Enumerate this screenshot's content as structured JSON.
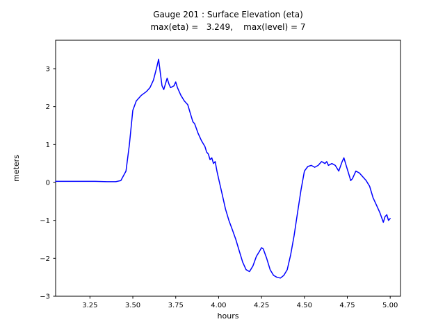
{
  "chart_data": {
    "type": "line",
    "title": "Gauge 201 : Surface Elevation (eta)",
    "subtitle": "max(eta) =   3.249,    max(level) = 7",
    "xlabel": "hours",
    "ylabel": "meters",
    "xlim": [
      3.05,
      5.06
    ],
    "ylim": [
      -3,
      3.75
    ],
    "grid": false,
    "line_color": "#0000ff",
    "axis_color": "#000000",
    "xticks": [
      {
        "v": 3.25,
        "label": "3.25"
      },
      {
        "v": 3.5,
        "label": "3.50"
      },
      {
        "v": 3.75,
        "label": "3.75"
      },
      {
        "v": 4.0,
        "label": "4.00"
      },
      {
        "v": 4.25,
        "label": "4.25"
      },
      {
        "v": 4.5,
        "label": "4.50"
      },
      {
        "v": 4.75,
        "label": "4.75"
      },
      {
        "v": 5.0,
        "label": "5.00"
      }
    ],
    "yticks": [
      {
        "v": -3,
        "label": "−3"
      },
      {
        "v": -2,
        "label": "−2"
      },
      {
        "v": -1,
        "label": "−1"
      },
      {
        "v": 0,
        "label": "0"
      },
      {
        "v": 1,
        "label": "1"
      },
      {
        "v": 2,
        "label": "2"
      },
      {
        "v": 3,
        "label": "3"
      }
    ],
    "series": [
      {
        "name": "eta",
        "points": [
          [
            3.05,
            0.03
          ],
          [
            3.12,
            0.03
          ],
          [
            3.2,
            0.03
          ],
          [
            3.28,
            0.03
          ],
          [
            3.35,
            0.02
          ],
          [
            3.4,
            0.02
          ],
          [
            3.43,
            0.05
          ],
          [
            3.46,
            0.3
          ],
          [
            3.48,
            1.0
          ],
          [
            3.5,
            1.9
          ],
          [
            3.52,
            2.15
          ],
          [
            3.55,
            2.3
          ],
          [
            3.58,
            2.4
          ],
          [
            3.6,
            2.5
          ],
          [
            3.62,
            2.7
          ],
          [
            3.64,
            3.05
          ],
          [
            3.65,
            3.249
          ],
          [
            3.66,
            2.9
          ],
          [
            3.67,
            2.55
          ],
          [
            3.68,
            2.45
          ],
          [
            3.7,
            2.75
          ],
          [
            3.71,
            2.6
          ],
          [
            3.72,
            2.5
          ],
          [
            3.74,
            2.55
          ],
          [
            3.75,
            2.65
          ],
          [
            3.76,
            2.5
          ],
          [
            3.78,
            2.3
          ],
          [
            3.8,
            2.15
          ],
          [
            3.82,
            2.05
          ],
          [
            3.84,
            1.75
          ],
          [
            3.85,
            1.6
          ],
          [
            3.86,
            1.55
          ],
          [
            3.88,
            1.3
          ],
          [
            3.89,
            1.2
          ],
          [
            3.9,
            1.1
          ],
          [
            3.92,
            0.95
          ],
          [
            3.93,
            0.8
          ],
          [
            3.94,
            0.75
          ],
          [
            3.95,
            0.6
          ],
          [
            3.96,
            0.65
          ],
          [
            3.97,
            0.5
          ],
          [
            3.98,
            0.55
          ],
          [
            3.99,
            0.3
          ],
          [
            4.0,
            0.1
          ],
          [
            4.02,
            -0.3
          ],
          [
            4.04,
            -0.7
          ],
          [
            4.06,
            -1.0
          ],
          [
            4.08,
            -1.25
          ],
          [
            4.1,
            -1.5
          ],
          [
            4.12,
            -1.8
          ],
          [
            4.14,
            -2.1
          ],
          [
            4.16,
            -2.3
          ],
          [
            4.18,
            -2.35
          ],
          [
            4.2,
            -2.2
          ],
          [
            4.22,
            -1.95
          ],
          [
            4.24,
            -1.8
          ],
          [
            4.25,
            -1.72
          ],
          [
            4.26,
            -1.75
          ],
          [
            4.28,
            -2.0
          ],
          [
            4.3,
            -2.3
          ],
          [
            4.32,
            -2.45
          ],
          [
            4.34,
            -2.5
          ],
          [
            4.36,
            -2.52
          ],
          [
            4.38,
            -2.45
          ],
          [
            4.4,
            -2.3
          ],
          [
            4.42,
            -1.9
          ],
          [
            4.44,
            -1.4
          ],
          [
            4.46,
            -0.8
          ],
          [
            4.48,
            -0.2
          ],
          [
            4.5,
            0.3
          ],
          [
            4.52,
            0.42
          ],
          [
            4.54,
            0.45
          ],
          [
            4.56,
            0.4
          ],
          [
            4.58,
            0.45
          ],
          [
            4.6,
            0.55
          ],
          [
            4.62,
            0.5
          ],
          [
            4.63,
            0.55
          ],
          [
            4.64,
            0.45
          ],
          [
            4.66,
            0.5
          ],
          [
            4.68,
            0.45
          ],
          [
            4.7,
            0.3
          ],
          [
            4.72,
            0.55
          ],
          [
            4.73,
            0.65
          ],
          [
            4.74,
            0.5
          ],
          [
            4.76,
            0.2
          ],
          [
            4.77,
            0.05
          ],
          [
            4.78,
            0.1
          ],
          [
            4.8,
            0.3
          ],
          [
            4.82,
            0.25
          ],
          [
            4.84,
            0.15
          ],
          [
            4.86,
            0.05
          ],
          [
            4.88,
            -0.1
          ],
          [
            4.9,
            -0.4
          ],
          [
            4.92,
            -0.6
          ],
          [
            4.94,
            -0.8
          ],
          [
            4.96,
            -1.05
          ],
          [
            4.97,
            -0.9
          ],
          [
            4.98,
            -0.85
          ],
          [
            4.99,
            -1.0
          ],
          [
            5.0,
            -0.95
          ]
        ]
      }
    ]
  }
}
